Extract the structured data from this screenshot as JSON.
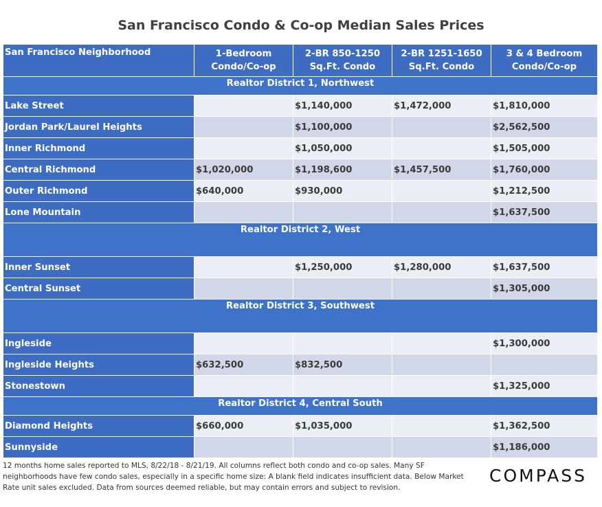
{
  "title": "San Francisco Condo & Co-op Median Sales Prices",
  "columns": [
    "San Francisco Neighborhood",
    "1-Bedroom",
    "Condo/Co-op",
    "2-BR 850-1250",
    "Sq.Ft. Condo",
    "2-BR 1251-1650",
    "Sq.Ft. Condo",
    "3 & 4 Bedroom",
    "Condo/Co-op"
  ],
  "districts": [
    {
      "name": "Realtor District 1, Northwest",
      "rows": [
        {
          "name": "Lake Street",
          "c1": "",
          "c2": "$1,140,000",
          "c3": "$1,472,000",
          "c4": "$1,810,000"
        },
        {
          "name": "Jordan Park/Laurel Heights",
          "c1": "",
          "c2": "$1,100,000",
          "c3": "",
          "c4": "$2,562,500"
        },
        {
          "name": "Inner Richmond",
          "c1": "",
          "c2": "$1,050,000",
          "c3": "",
          "c4": "$1,505,000"
        },
        {
          "name": "Central Richmond",
          "c1": "$1,020,000",
          "c2": "$1,198,600",
          "c3": "$1,457,500",
          "c4": "$1,760,000"
        },
        {
          "name": "Outer Richmond",
          "c1": "$640,000",
          "c2": "$930,000",
          "c3": "",
          "c4": "$1,212,500"
        },
        {
          "name": "Lone Mountain",
          "c1": "",
          "c2": "",
          "c3": "",
          "c4": "$1,637,500"
        }
      ]
    },
    {
      "name": "Realtor District 2, West",
      "rows": [
        {
          "name": "Inner Sunset",
          "c1": "",
          "c2": "$1,250,000",
          "c3": "$1,280,000",
          "c4": "$1,637,500"
        },
        {
          "name": "Central Sunset",
          "c1": "",
          "c2": "",
          "c3": "",
          "c4": "$1,305,000"
        }
      ]
    },
    {
      "name": "Realtor District 3, Southwest",
      "rows": [
        {
          "name": "Ingleside",
          "c1": "",
          "c2": "",
          "c3": "",
          "c4": "$1,300,000"
        },
        {
          "name": "Ingleside Heights",
          "c1": "$632,500",
          "c2": "$832,500",
          "c3": "",
          "c4": ""
        },
        {
          "name": "Stonestown",
          "c1": "",
          "c2": "",
          "c3": "",
          "c4": "$1,325,000"
        }
      ]
    },
    {
      "name": "Realtor District 4, Central South",
      "rows": [
        {
          "name": "Diamond Heights",
          "c1": "$660,000",
          "c2": "$1,035,000",
          "c3": "",
          "c4": "$1,362,500"
        },
        {
          "name": "Sunnyside",
          "c1": "",
          "c2": "",
          "c3": "",
          "c4": "$1,186,000"
        }
      ]
    }
  ],
  "footnote": "12 months home sales reported to MLS, 8/22/18 - 8/21/19. All columns reflect both condo and co-op sales. Many SF neighborhoods have few condo sales, especially in a specific home size: A blank field indicates insufficient data. Below Market Rate unit sales excluded. Data from sources deemed reliable, but may contain errors and subject to revision.",
  "logo": "COMPASS"
}
